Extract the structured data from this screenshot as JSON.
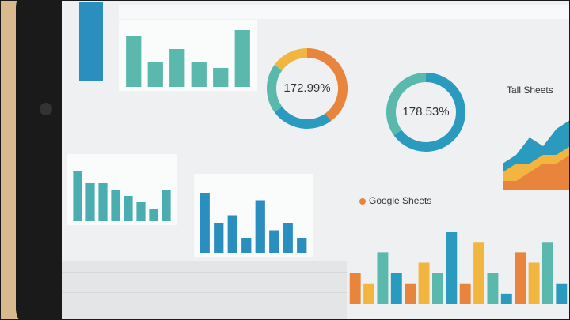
{
  "panels": [
    {
      "type": "bar",
      "color": "#5bb8ad",
      "values": [
        8,
        4,
        6,
        4,
        3,
        9
      ],
      "ylim": [
        0,
        10
      ]
    },
    {
      "type": "donut",
      "label": "172.99%",
      "colors": [
        "#e9843c",
        "#2a9bbf",
        "#5bb8ad",
        "#f2b640"
      ],
      "values": [
        40,
        25,
        20,
        15
      ]
    },
    {
      "type": "donut",
      "label": "178.53%",
      "colors": [
        "#2a9bbf",
        "#5bb8ad"
      ],
      "values": [
        65,
        35
      ]
    },
    {
      "type": "bar",
      "color": "#4aaeb0",
      "values": [
        8,
        6,
        6,
        5,
        4,
        3,
        2,
        5
      ],
      "ylim": [
        0,
        10
      ]
    },
    {
      "type": "bar",
      "color": "#2a8fbf",
      "values": [
        8,
        4,
        5,
        2,
        7,
        3,
        4,
        2
      ],
      "ylim": [
        0,
        10
      ]
    },
    {
      "type": "area",
      "title": "Tall Sheets",
      "ylim": [
        0,
        10
      ],
      "series": [
        {
          "color": "#2a9bbf",
          "values": [
            3,
            4,
            6,
            5,
            7,
            8
          ]
        },
        {
          "color": "#f2b640",
          "values": [
            2,
            3,
            3,
            4,
            4,
            5
          ]
        },
        {
          "color": "#e9843c",
          "values": [
            1,
            1,
            2,
            3,
            3,
            4
          ]
        }
      ]
    },
    {
      "type": "grouped",
      "title": "Google Sheets",
      "ylim": [
        0,
        8
      ],
      "colors": [
        "#e9843c",
        "#f2b640",
        "#5bb8ad",
        "#2a9bbf"
      ],
      "values": [
        3,
        2,
        5,
        3,
        2,
        4,
        3,
        7,
        2,
        6,
        3,
        1,
        5,
        4,
        6,
        2
      ]
    }
  ]
}
